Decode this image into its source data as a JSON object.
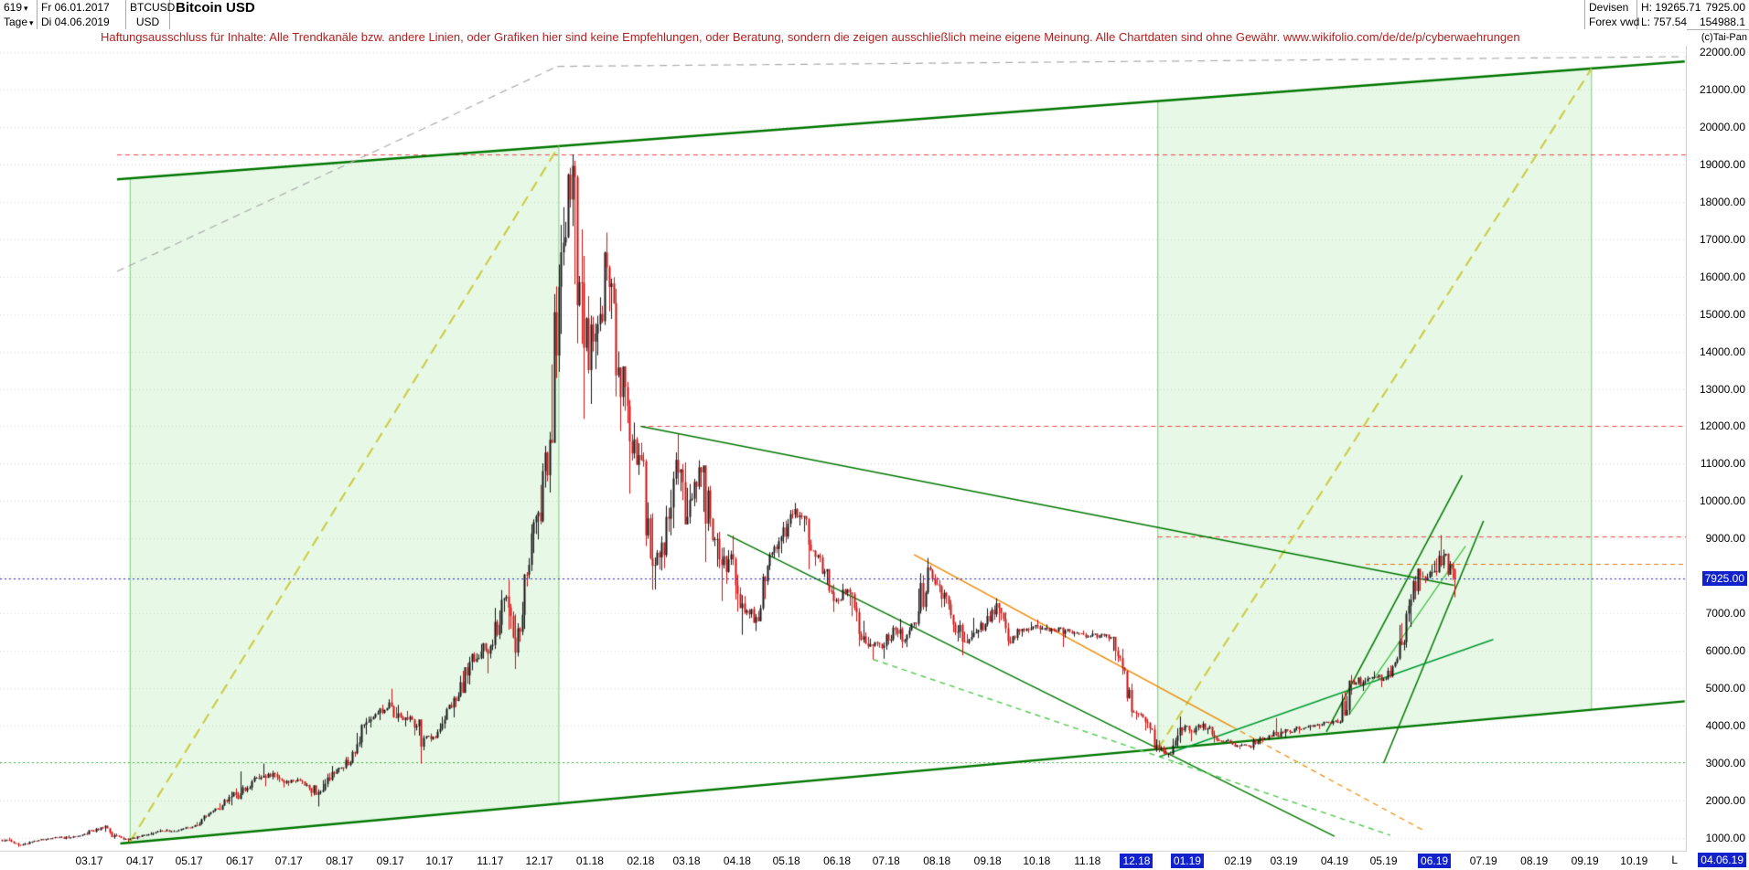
{
  "header": {
    "bars": "619",
    "period": "Tage",
    "range_start": "Fr 06.01.2017",
    "range_end": "Di 04.06.2019",
    "symbol": "BTCUSD",
    "currency": "USD",
    "title": "Bitcoin USD",
    "feed1": "Devisen",
    "feed2": "Forex vwd",
    "high": "H: 19265.71",
    "low": "L: 757.54",
    "last": "7925.00",
    "volume": "154988.1",
    "copyright": "(c)Tai-Pan"
  },
  "disclaimer": "Haftungsausschluss für Inhalte: Alle Trendkanäle bzw. andere Linien, oder Grafiken hier sind keine Empfehlungen, oder Beratung, sondern die zeigen ausschließlich meine eigene Meinung. Alle Chartdaten sind ohne Gewähr.  www.wikifolio.com/de/de/p/cyberwaehrungen",
  "markers": {
    "price_label": "7925.00",
    "date_prefix": "L",
    "date_label": "04.06.19"
  },
  "chart_data": {
    "type": "candlestick",
    "title": "Bitcoin USD",
    "instrument": "BTCUSD",
    "bars_shown": 619,
    "first_bar_date": "2017-01-06",
    "last_bar_date": "2019-06-04",
    "last_close": 7925.0,
    "series_high": 19265.71,
    "series_low": 757.54,
    "interval_of_rows": "weekly OHLC (rendered as daily-density sub-bars)",
    "colors": {
      "up": "#161616",
      "down": "#cc1111",
      "highlight_bg": "#1122cc",
      "band_green": "#8ce08c",
      "channel_green": "#007700"
    },
    "y_axis": {
      "min": 1000,
      "max": 22000,
      "step": 1000,
      "tick_labels": [
        "22000.00",
        "21000.00",
        "20000.00",
        "19000.00",
        "18000.00",
        "17000.00",
        "16000.00",
        "15000.00",
        "14000.00",
        "13000.00",
        "12000.00",
        "11000.00",
        "10000.00",
        "9000.00",
        "8000.00",
        "7000.00",
        "6000.00",
        "5000.00",
        "4000.00",
        "3000.00",
        "2000.00",
        "1000.00"
      ]
    },
    "x_axis": {
      "ticks": [
        {
          "label": "03.17",
          "highlight": false
        },
        {
          "label": "04.17",
          "highlight": false
        },
        {
          "label": "05.17",
          "highlight": false
        },
        {
          "label": "06.17",
          "highlight": false
        },
        {
          "label": "07.17",
          "highlight": false
        },
        {
          "label": "08.17",
          "highlight": false
        },
        {
          "label": "09.17",
          "highlight": false
        },
        {
          "label": "10.17",
          "highlight": false
        },
        {
          "label": "11.17",
          "highlight": false
        },
        {
          "label": "12.17",
          "highlight": false
        },
        {
          "label": "01.18",
          "highlight": false
        },
        {
          "label": "02.18",
          "highlight": false
        },
        {
          "label": "03.18",
          "highlight": false
        },
        {
          "label": "04.18",
          "highlight": false
        },
        {
          "label": "05.18",
          "highlight": false
        },
        {
          "label": "06.18",
          "highlight": false
        },
        {
          "label": "07.18",
          "highlight": false
        },
        {
          "label": "08.18",
          "highlight": false
        },
        {
          "label": "09.18",
          "highlight": false
        },
        {
          "label": "10.18",
          "highlight": false
        },
        {
          "label": "11.18",
          "highlight": false
        },
        {
          "label": "12.18",
          "highlight": true
        },
        {
          "label": "01.19",
          "highlight": true
        },
        {
          "label": "02.19",
          "highlight": false
        },
        {
          "label": "03.19",
          "highlight": false
        },
        {
          "label": "04.19",
          "highlight": false
        },
        {
          "label": "05.19",
          "highlight": false
        },
        {
          "label": "06.19",
          "highlight": true
        },
        {
          "label": "07.19",
          "highlight": false
        },
        {
          "label": "08.19",
          "highlight": false
        },
        {
          "label": "09.19",
          "highlight": false
        },
        {
          "label": "10.19",
          "highlight": false
        }
      ]
    },
    "candles_weekly": [
      [
        950,
        1005,
        880,
        900
      ],
      [
        900,
        915,
        758,
        820
      ],
      [
        820,
        930,
        805,
        920
      ],
      [
        920,
        975,
        900,
        965
      ],
      [
        965,
        1025,
        950,
        1010
      ],
      [
        1010,
        1070,
        958,
        1000
      ],
      [
        1000,
        1068,
        992,
        1055
      ],
      [
        1055,
        1218,
        1045,
        1190
      ],
      [
        1190,
        1295,
        1140,
        1270
      ],
      [
        1270,
        1330,
        975,
        1070
      ],
      [
        1070,
        1115,
        935,
        970
      ],
      [
        970,
        1048,
        895,
        1035
      ],
      [
        1035,
        1108,
        1020,
        1090
      ],
      [
        1090,
        1228,
        1068,
        1190
      ],
      [
        1190,
        1238,
        1152,
        1180
      ],
      [
        1180,
        1258,
        1168,
        1245
      ],
      [
        1245,
        1348,
        1232,
        1335
      ],
      [
        1335,
        1608,
        1322,
        1580
      ],
      [
        1580,
        1798,
        1558,
        1770
      ],
      [
        1770,
        2152,
        1748,
        2090
      ],
      [
        2090,
        2775,
        1868,
        2190
      ],
      [
        2190,
        2552,
        2148,
        2510
      ],
      [
        2510,
        2985,
        2480,
        2660
      ],
      [
        2660,
        2795,
        2378,
        2700
      ],
      [
        2700,
        2762,
        2348,
        2520
      ],
      [
        2520,
        2612,
        2388,
        2560
      ],
      [
        2560,
        2592,
        2268,
        2330
      ],
      [
        2330,
        2402,
        1838,
        2230
      ],
      [
        2230,
        2922,
        2218,
        2760
      ],
      [
        2760,
        2882,
        2618,
        2870
      ],
      [
        2870,
        3342,
        2838,
        3260
      ],
      [
        3260,
        4205,
        3228,
        4090
      ],
      [
        4090,
        4402,
        3948,
        4330
      ],
      [
        4330,
        4705,
        4148,
        4620
      ],
      [
        4620,
        4982,
        4098,
        4230
      ],
      [
        4230,
        4392,
        3978,
        4160
      ],
      [
        4160,
        4182,
        2982,
        3670
      ],
      [
        3670,
        3792,
        3568,
        3680
      ],
      [
        3680,
        4482,
        3658,
        4440
      ],
      [
        4440,
        4892,
        4218,
        4790
      ],
      [
        4790,
        5842,
        4758,
        5700
      ],
      [
        5700,
        6182,
        5478,
        5980
      ],
      [
        5980,
        6302,
        5398,
        6160
      ],
      [
        6160,
        7622,
        6048,
        7400
      ],
      [
        7400,
        7892,
        5512,
        5950
      ],
      [
        5950,
        8102,
        5848,
        8040
      ],
      [
        8040,
        9742,
        7918,
        9700
      ],
      [
        9700,
        11852,
        9378,
        11640
      ],
      [
        11640,
        17382,
        11558,
        16650
      ],
      [
        16650,
        19265,
        16298,
        18960
      ],
      [
        18960,
        19102,
        12198,
        14100
      ],
      [
        14100,
        15482,
        12598,
        14480
      ],
      [
        14480,
        17178,
        13898,
        16250
      ],
      [
        16250,
        16302,
        12798,
        13570
      ],
      [
        13570,
        13602,
        10198,
        11600
      ],
      [
        11600,
        12102,
        10698,
        11100
      ],
      [
        11100,
        11302,
        7628,
        8270
      ],
      [
        8270,
        9062,
        7638,
        8560
      ],
      [
        8560,
        11302,
        8498,
        11100
      ],
      [
        11100,
        11792,
        9378,
        9580
      ],
      [
        9580,
        11092,
        9398,
        10900
      ],
      [
        10900,
        10952,
        8368,
        9530
      ],
      [
        9530,
        9552,
        7328,
        8290
      ],
      [
        8290,
        9082,
        7788,
        8450
      ],
      [
        8450,
        8502,
        6428,
        7020
      ],
      [
        7020,
        7182,
        6528,
        6900
      ],
      [
        6900,
        8292,
        6788,
        8270
      ],
      [
        8270,
        9032,
        8158,
        8930
      ],
      [
        8930,
        9762,
        8608,
        9650
      ],
      [
        9650,
        9952,
        9348,
        9600
      ],
      [
        9600,
        9602,
        8178,
        8670
      ],
      [
        8670,
        8692,
        7968,
        8120
      ],
      [
        8120,
        8182,
        7038,
        7360
      ],
      [
        7360,
        7792,
        7248,
        7640
      ],
      [
        7640,
        7692,
        6118,
        6450
      ],
      [
        6450,
        6802,
        6058,
        6170
      ],
      [
        6170,
        6252,
        5768,
        6080
      ],
      [
        6080,
        6682,
        5788,
        6620
      ],
      [
        6620,
        6852,
        6078,
        6290
      ],
      [
        6290,
        6752,
        6098,
        6720
      ],
      [
        6720,
        8482,
        6658,
        8230
      ],
      [
        8230,
        8282,
        7558,
        7730
      ],
      [
        7730,
        7752,
        6858,
        6950
      ],
      [
        6950,
        6972,
        5878,
        6250
      ],
      [
        6250,
        6882,
        6178,
        6480
      ],
      [
        6480,
        6802,
        6338,
        6710
      ],
      [
        6710,
        7402,
        6648,
        7270
      ],
      [
        7270,
        7282,
        6128,
        6250
      ],
      [
        6250,
        6602,
        6178,
        6520
      ],
      [
        6520,
        6772,
        6378,
        6600
      ],
      [
        6600,
        6832,
        6458,
        6600
      ],
      [
        6600,
        6702,
        6448,
        6560
      ],
      [
        6560,
        6622,
        6098,
        6550
      ],
      [
        6550,
        6582,
        6378,
        6480
      ],
      [
        6480,
        6542,
        6328,
        6380
      ],
      [
        6380,
        6552,
        6308,
        6420
      ],
      [
        6420,
        6452,
        6248,
        6360
      ],
      [
        6360,
        6372,
        5358,
        5550
      ],
      [
        5550,
        5562,
        4228,
        4360
      ],
      [
        4360,
        4402,
        3868,
        4100
      ],
      [
        4100,
        4182,
        3298,
        3480
      ],
      [
        3480,
        3602,
        3148,
        3250
      ],
      [
        3250,
        4242,
        3218,
        3950
      ],
      [
        3950,
        4032,
        3578,
        3850
      ],
      [
        3850,
        4112,
        3748,
        4050
      ],
      [
        4050,
        4062,
        3548,
        3680
      ],
      [
        3680,
        3732,
        3518,
        3590
      ],
      [
        3590,
        3642,
        3418,
        3470
      ],
      [
        3470,
        3522,
        3368,
        3460
      ],
      [
        3460,
        3712,
        3348,
        3670
      ],
      [
        3670,
        3742,
        3558,
        3710
      ],
      [
        3710,
        4202,
        3698,
        3810
      ],
      [
        3810,
        3922,
        3668,
        3920
      ],
      [
        3920,
        3982,
        3788,
        3950
      ],
      [
        3950,
        4052,
        3868,
        4030
      ],
      [
        4030,
        4102,
        3908,
        4100
      ],
      [
        4100,
        4182,
        4008,
        4100
      ],
      [
        4100,
        5352,
        4078,
        5200
      ],
      [
        5200,
        5322,
        4928,
        5170
      ],
      [
        5170,
        5452,
        5118,
        5300
      ],
      [
        5300,
        5362,
        5028,
        5260
      ],
      [
        5260,
        5842,
        5218,
        5790
      ],
      [
        5790,
        7382,
        5748,
        7200
      ],
      [
        7200,
        8192,
        6638,
        7990
      ],
      [
        7990,
        8292,
        7808,
        8100
      ],
      [
        8100,
        9092,
        7998,
        8550
      ],
      [
        8550,
        8602,
        7428,
        7925
      ]
    ],
    "band_fill": "rgba(144,224,144,0.22)",
    "band_border": "#77cc77",
    "bands": [
      {
        "from": "2017-03-26",
        "to": "2017-12-13"
      },
      {
        "from": "2018-12-14",
        "to": "2019-09-05"
      }
    ],
    "levels": [
      {
        "price": 19265,
        "from": "2017-03-18",
        "color": "#ee4444",
        "dash": [
          5,
          4
        ],
        "width": 1
      },
      {
        "price": 12000,
        "from": "2018-02-01",
        "color": "#ee4444",
        "dash": [
          5,
          4
        ],
        "width": 1
      },
      {
        "price": 9060,
        "from": "2018-12-14",
        "color": "#ee4444",
        "dash": [
          5,
          4
        ],
        "width": 1
      },
      {
        "price": 8320,
        "from": "2019-04-20",
        "color": "#e07818",
        "dash": [
          5,
          4
        ],
        "width": 1
      },
      {
        "price": 3020,
        "from": "start",
        "color": "#44bb44",
        "dash": [
          2,
          3
        ],
        "width": 1
      },
      {
        "price": 7925,
        "from": "start",
        "color": "#2222cc",
        "dash": [
          2,
          3
        ],
        "width": 1,
        "above": true
      }
    ],
    "trendlines": [
      {
        "name": "channel-top",
        "p1": [
          "2017-03-18",
          18600
        ],
        "p2": [
          "2019-11-01",
          21750
        ],
        "color": "#007700",
        "width": 2.5
      },
      {
        "name": "channel-bottom",
        "p1": [
          "2017-03-20",
          850
        ],
        "p2": [
          "2019-11-01",
          4650
        ],
        "color": "#007700",
        "width": 2.5
      },
      {
        "name": "projection-diagonal-1",
        "p1": [
          "2017-03-26",
          900
        ],
        "p2": [
          "2017-12-13",
          19490
        ],
        "color": "#c8cc3a",
        "width": 2,
        "dash": [
          12,
          7
        ]
      },
      {
        "name": "projection-diagonal-2",
        "p1": [
          "2018-12-14",
          3370
        ],
        "p2": [
          "2019-09-05",
          21560
        ],
        "color": "#c8cc3a",
        "width": 2,
        "dash": [
          12,
          7
        ]
      },
      {
        "name": "descending-resistance-1",
        "p1": [
          "2018-02-01",
          12000
        ],
        "p2": [
          "2019-06-13",
          7750
        ],
        "color": "#007700",
        "width": 1.5
      },
      {
        "name": "descending-resistance-2",
        "p1": [
          "2018-03-26",
          9100
        ],
        "p2": [
          "2019-04-01",
          1040
        ],
        "color": "#007700",
        "width": 1.5
      },
      {
        "name": "wedge-lower-dashed",
        "p1": [
          "2018-06-23",
          5770
        ],
        "p2": [
          "2019-05-05",
          1070
        ],
        "color": "#55cc55",
        "width": 1.5,
        "dash": [
          6,
          5
        ]
      },
      {
        "name": "orange-descending",
        "p1": [
          "2018-07-18",
          8570
        ],
        "p2": [
          "2019-01-28",
          3980
        ],
        "color": "#ee8800",
        "width": 1.5
      },
      {
        "name": "orange-descending-ext",
        "p1": [
          "2019-01-28",
          3980
        ],
        "p2": [
          "2019-05-27",
          1160
        ],
        "color": "#ee8800",
        "width": 1.2,
        "dash": [
          6,
          5
        ]
      },
      {
        "name": "steep-channel-left",
        "p1": [
          "2019-03-27",
          3830
        ],
        "p2": [
          "2019-06-18",
          10690
        ],
        "color": "#007700",
        "width": 1.5
      },
      {
        "name": "steep-channel-right",
        "p1": [
          "2019-05-01",
          3000
        ],
        "p2": [
          "2019-07-01",
          9470
        ],
        "color": "#007700",
        "width": 1.5
      },
      {
        "name": "rising-support-2019",
        "p1": [
          "2018-12-15",
          3170
        ],
        "p2": [
          "2019-07-07",
          6300
        ],
        "color": "#009933",
        "width": 1.5
      },
      {
        "name": "rising-light-2019",
        "p1": [
          "2019-04-10",
          4300
        ],
        "p2": [
          "2019-06-20",
          8800
        ],
        "color": "#33bb33",
        "width": 1.2
      },
      {
        "name": "gray-dashed-top",
        "p1": [
          "2017-12-12",
          21620
        ],
        "p2": [
          "2019-11-01",
          21880
        ],
        "color": "#aaaaaa",
        "width": 1.2,
        "dash": [
          8,
          6
        ]
      },
      {
        "name": "gray-dashed-steep",
        "p1": [
          "2017-03-18",
          16140
        ],
        "p2": [
          "2017-12-12",
          21620
        ],
        "color": "#aaaaaa",
        "width": 1.2,
        "dash": [
          8,
          6
        ]
      }
    ]
  }
}
